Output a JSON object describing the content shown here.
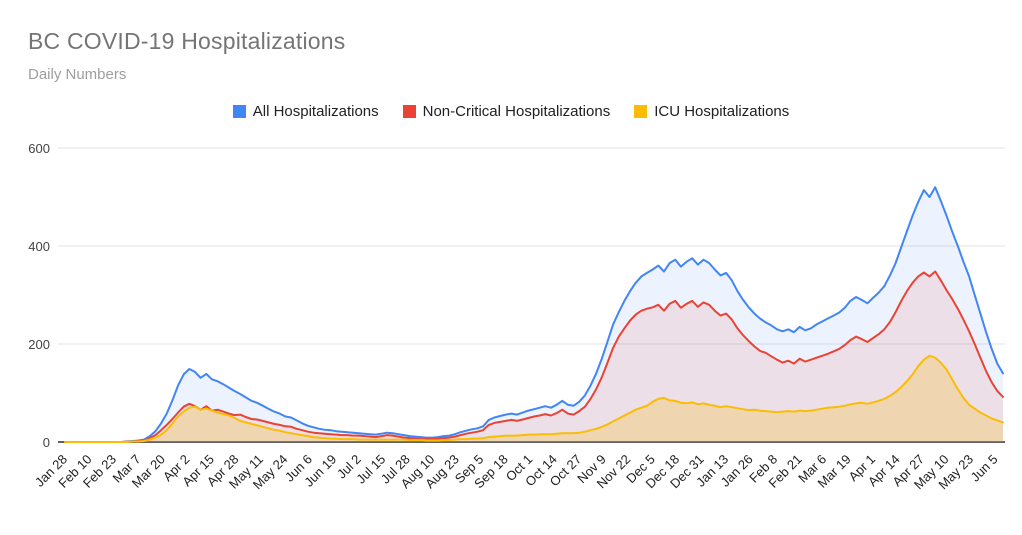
{
  "header": {
    "title": "BC COVID-19 Hospitalizations",
    "subtitle": "Daily Numbers"
  },
  "chart_data": {
    "type": "area",
    "title": "BC COVID-19 Hospitalizations",
    "subtitle": "Daily Numbers",
    "xlabel": "",
    "ylabel": "",
    "ylim": [
      0,
      600
    ],
    "yticks": [
      0,
      200,
      400,
      600
    ],
    "grid": true,
    "legend_position": "top",
    "background_color": "#ffffff",
    "axis_label_color": "#444444",
    "baseline_color": "#616161",
    "gridline_color": "#e3e3e3",
    "x_start_label": "Jan 28",
    "x_sample_interval_days": 3,
    "x_tick_interval_days": 13,
    "xtick_labels": [
      "Jan 28",
      "Feb 10",
      "Feb 23",
      "Mar 7",
      "Mar 20",
      "Apr 2",
      "Apr 15",
      "Apr 28",
      "May 11",
      "May 24",
      "Jun 6",
      "Jun 19",
      "Jul 2",
      "Jul 15",
      "Jul 28",
      "Aug 10",
      "Aug 23",
      "Sep 5",
      "Sep 18",
      "Oct 1",
      "Oct 14",
      "Oct 27",
      "Nov 9",
      "Nov 22",
      "Dec 5",
      "Dec 18",
      "Dec 31",
      "Jan 13",
      "Jan 26",
      "Feb 8",
      "Feb 21",
      "Mar 6",
      "Mar 19",
      "Apr 1",
      "Apr 14",
      "Apr 27",
      "May 10",
      "May 23",
      "Jun 5"
    ],
    "series": [
      {
        "name": "All Hospitalizations",
        "color": "#4285F4",
        "fill_opacity": 0.1,
        "values": [
          0,
          0,
          0,
          0,
          0,
          0,
          0,
          0,
          0,
          0,
          0,
          1,
          2,
          3,
          5,
          12,
          22,
          38,
          58,
          85,
          115,
          138,
          149,
          143,
          131,
          139,
          128,
          124,
          118,
          111,
          104,
          98,
          91,
          84,
          80,
          74,
          68,
          62,
          58,
          52,
          50,
          44,
          38,
          33,
          30,
          27,
          25,
          24,
          22,
          21,
          20,
          19,
          18,
          17,
          16,
          15,
          17,
          19,
          18,
          16,
          14,
          12,
          11,
          10,
          9,
          9,
          10,
          12,
          13,
          16,
          20,
          23,
          26,
          28,
          32,
          45,
          50,
          53,
          56,
          58,
          56,
          60,
          64,
          67,
          70,
          73,
          70,
          76,
          84,
          76,
          74,
          82,
          95,
          115,
          140,
          170,
          205,
          240,
          265,
          288,
          308,
          325,
          338,
          345,
          352,
          360,
          348,
          365,
          372,
          358,
          368,
          375,
          362,
          372,
          365,
          352,
          340,
          345,
          330,
          308,
          290,
          275,
          262,
          252,
          244,
          238,
          230,
          226,
          230,
          224,
          235,
          228,
          232,
          240,
          246,
          252,
          258,
          264,
          274,
          288,
          296,
          290,
          283,
          294,
          305,
          318,
          340,
          365,
          398,
          430,
          462,
          490,
          514,
          500,
          520,
          492,
          462,
          430,
          400,
          368,
          338,
          300,
          262,
          225,
          190,
          160,
          140
        ]
      },
      {
        "name": "Non-Critical Hospitalizations",
        "color": "#EA4335",
        "fill_opacity": 0.11,
        "values": [
          0,
          0,
          0,
          0,
          0,
          0,
          0,
          0,
          0,
          0,
          0,
          1,
          1,
          2,
          3,
          8,
          14,
          24,
          35,
          47,
          60,
          72,
          78,
          73,
          66,
          73,
          64,
          66,
          62,
          58,
          55,
          56,
          51,
          47,
          46,
          43,
          40,
          37,
          35,
          32,
          31,
          27,
          24,
          21,
          19,
          18,
          17,
          16,
          15,
          14,
          14,
          13,
          13,
          12,
          11,
          10,
          12,
          14,
          13,
          11,
          9,
          8,
          7,
          6,
          6,
          6,
          7,
          8,
          9,
          11,
          14,
          17,
          19,
          21,
          24,
          35,
          39,
          41,
          43,
          45,
          43,
          46,
          49,
          52,
          54,
          57,
          54,
          59,
          66,
          58,
          56,
          63,
          72,
          88,
          108,
          132,
          162,
          192,
          215,
          232,
          248,
          260,
          268,
          272,
          275,
          280,
          268,
          282,
          288,
          274,
          282,
          288,
          276,
          285,
          280,
          268,
          258,
          262,
          250,
          232,
          218,
          206,
          195,
          186,
          182,
          175,
          168,
          162,
          166,
          160,
          170,
          164,
          168,
          172,
          176,
          180,
          185,
          190,
          198,
          208,
          215,
          210,
          204,
          212,
          220,
          230,
          245,
          265,
          288,
          308,
          325,
          338,
          346,
          338,
          348,
          330,
          310,
          292,
          272,
          250,
          226,
          200,
          172,
          145,
          122,
          104,
          92
        ]
      },
      {
        "name": "ICU Hospitalizations",
        "color": "#FBBC04",
        "fill_opacity": 0.24,
        "values": [
          0,
          0,
          0,
          0,
          0,
          0,
          0,
          0,
          0,
          0,
          0,
          0,
          1,
          1,
          2,
          5,
          9,
          15,
          24,
          38,
          52,
          62,
          70,
          72,
          66,
          68,
          64,
          60,
          57,
          54,
          49,
          43,
          40,
          37,
          34,
          31,
          28,
          25,
          23,
          20,
          18,
          16,
          14,
          12,
          10,
          9,
          8,
          7,
          7,
          6,
          6,
          6,
          5,
          5,
          5,
          5,
          5,
          5,
          5,
          5,
          5,
          4,
          4,
          4,
          3,
          3,
          3,
          4,
          4,
          5,
          6,
          6,
          7,
          7,
          8,
          10,
          11,
          12,
          13,
          13,
          13,
          14,
          15,
          15,
          16,
          16,
          16,
          17,
          18,
          18,
          18,
          19,
          21,
          24,
          27,
          31,
          36,
          42,
          48,
          54,
          60,
          66,
          70,
          74,
          82,
          88,
          90,
          85,
          84,
          80,
          79,
          81,
          77,
          79,
          76,
          74,
          71,
          73,
          71,
          69,
          67,
          65,
          66,
          64,
          63,
          62,
          61,
          62,
          63,
          62,
          64,
          63,
          64,
          66,
          68,
          70,
          71,
          72,
          74,
          77,
          79,
          80,
          78,
          81,
          84,
          88,
          94,
          102,
          112,
          124,
          138,
          155,
          168,
          176,
          172,
          162,
          148,
          128,
          108,
          90,
          76,
          68,
          60,
          54,
          48,
          44,
          40
        ]
      }
    ]
  }
}
